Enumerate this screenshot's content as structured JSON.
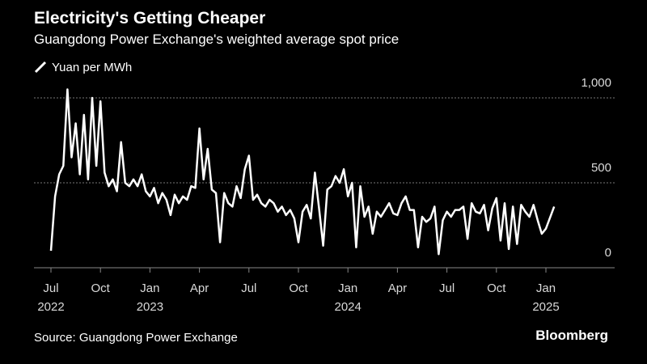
{
  "chart_data": {
    "type": "line",
    "title": "Electricity's Getting Cheaper",
    "subtitle": "Guangdong Power Exchange's weighted average spot price",
    "source": "Source: Guangdong Power Exchange",
    "brand": "Bloomberg",
    "x": [
      "2022-07",
      "2022-07",
      "2022-07",
      "2022-07",
      "2022-08",
      "2022-08",
      "2022-08",
      "2022-08",
      "2022-09",
      "2022-09",
      "2022-09",
      "2022-09",
      "2022-10",
      "2022-10",
      "2022-10",
      "2022-10",
      "2022-11",
      "2022-11",
      "2022-11",
      "2022-11",
      "2022-12",
      "2022-12",
      "2022-12",
      "2022-12",
      "2023-01",
      "2023-01",
      "2023-01",
      "2023-01",
      "2023-02",
      "2023-02",
      "2023-02",
      "2023-02",
      "2023-03",
      "2023-03",
      "2023-03",
      "2023-03",
      "2023-04",
      "2023-04",
      "2023-04",
      "2023-04",
      "2023-05",
      "2023-05",
      "2023-05",
      "2023-05",
      "2023-06",
      "2023-06",
      "2023-06",
      "2023-06",
      "2023-07",
      "2023-07",
      "2023-07",
      "2023-07",
      "2023-08",
      "2023-08",
      "2023-08",
      "2023-08",
      "2023-09",
      "2023-09",
      "2023-09",
      "2023-09",
      "2023-10",
      "2023-10",
      "2023-10",
      "2023-10",
      "2023-11",
      "2023-11",
      "2023-11",
      "2023-11",
      "2023-12",
      "2023-12",
      "2023-12",
      "2023-12",
      "2024-01",
      "2024-01",
      "2024-01",
      "2024-01",
      "2024-02",
      "2024-02",
      "2024-02",
      "2024-02",
      "2024-03",
      "2024-03",
      "2024-03",
      "2024-03",
      "2024-04",
      "2024-04",
      "2024-04",
      "2024-04",
      "2024-05",
      "2024-05",
      "2024-05",
      "2024-05",
      "2024-06",
      "2024-06",
      "2024-06",
      "2024-06",
      "2024-07",
      "2024-07",
      "2024-07",
      "2024-07",
      "2024-08",
      "2024-08",
      "2024-08",
      "2024-08",
      "2024-09",
      "2024-09",
      "2024-09",
      "2024-09",
      "2024-10",
      "2024-10",
      "2024-10",
      "2024-10",
      "2024-11",
      "2024-11",
      "2024-11",
      "2024-11",
      "2024-12",
      "2024-12",
      "2024-12",
      "2024-12",
      "2025-01",
      "2025-01"
    ],
    "series": [
      {
        "name": "Yuan per MWh",
        "color": "#ffffff",
        "values": [
          100,
          420,
          550,
          600,
          1050,
          650,
          850,
          550,
          900,
          520,
          1000,
          600,
          980,
          560,
          480,
          520,
          450,
          740,
          500,
          480,
          520,
          480,
          550,
          450,
          420,
          470,
          380,
          440,
          400,
          310,
          430,
          380,
          420,
          400,
          480,
          470,
          820,
          520,
          700,
          460,
          440,
          150,
          440,
          380,
          360,
          480,
          410,
          580,
          660,
          400,
          430,
          380,
          360,
          400,
          380,
          330,
          360,
          310,
          340,
          290,
          150,
          330,
          370,
          290,
          560,
          350,
          130,
          460,
          480,
          540,
          500,
          580,
          420,
          500,
          120,
          480,
          300,
          360,
          200,
          330,
          300,
          340,
          380,
          320,
          310,
          380,
          420,
          340,
          340,
          120,
          300,
          270,
          290,
          360,
          80,
          280,
          330,
          300,
          340,
          340,
          360,
          170,
          380,
          330,
          320,
          370,
          220,
          350,
          410,
          160,
          380,
          110,
          360,
          140,
          370,
          330,
          300,
          370,
          280,
          200,
          230,
          360
        ]
      }
    ],
    "ylim": [
      0,
      1100
    ],
    "yticks": [
      0,
      500,
      {
        "value": 1000,
        "label": "1,000"
      }
    ],
    "xticks": [
      {
        "value": "2022-07",
        "label": "Jul",
        "year": "2022"
      },
      {
        "value": "2022-10",
        "label": "Oct"
      },
      {
        "value": "2023-01",
        "label": "Jan",
        "year": "2023"
      },
      {
        "value": "2023-04",
        "label": "Apr"
      },
      {
        "value": "2023-07",
        "label": "Jul"
      },
      {
        "value": "2023-10",
        "label": "Oct"
      },
      {
        "value": "2024-01",
        "label": "Jan",
        "year": "2024"
      },
      {
        "value": "2024-04",
        "label": "Apr"
      },
      {
        "value": "2024-07",
        "label": "Jul"
      },
      {
        "value": "2024-10",
        "label": "Oct"
      },
      {
        "value": "2025-01",
        "label": "Jan",
        "year": "2025"
      }
    ],
    "grid": true
  }
}
